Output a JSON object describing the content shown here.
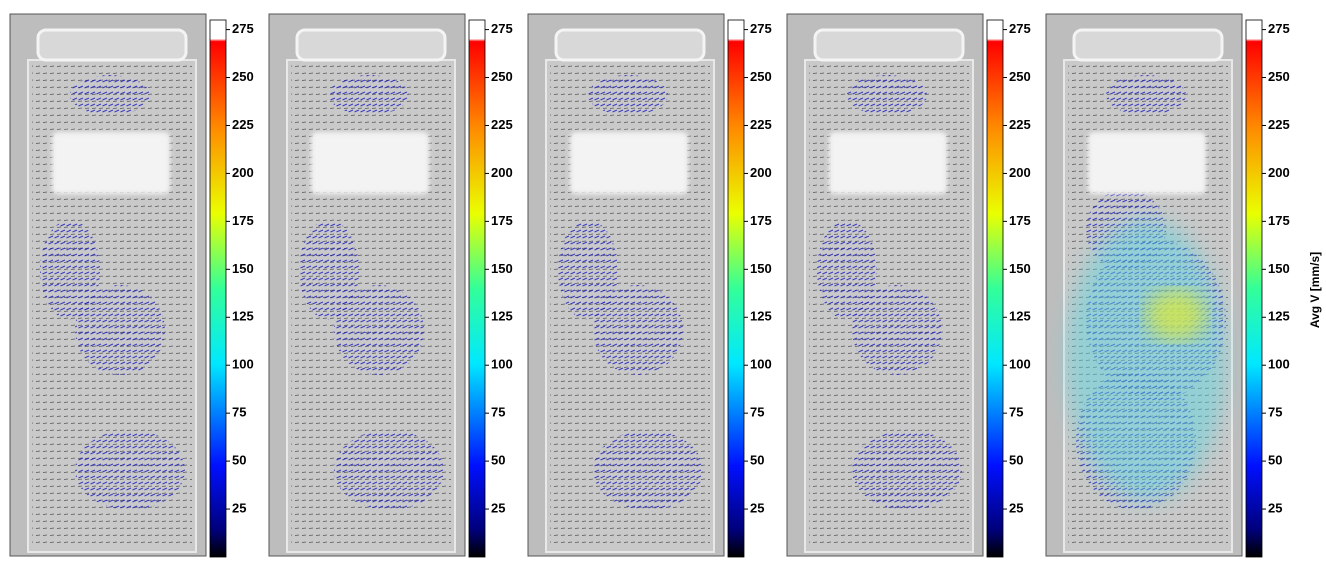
{
  "colorbar": {
    "label": "Avg V [mm/s]",
    "lim": [
      0,
      280
    ],
    "ticks": [
      25,
      50,
      75,
      100,
      125,
      150,
      175,
      200,
      225,
      250,
      275
    ]
  }
}
